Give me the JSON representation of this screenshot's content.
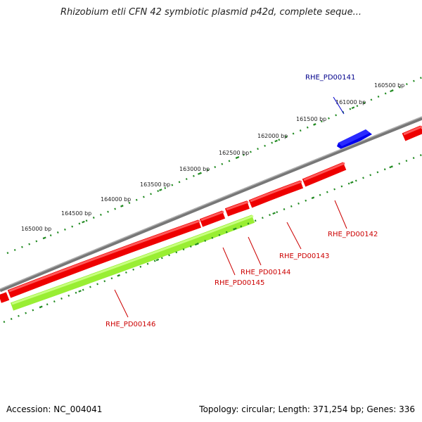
{
  "title": "Rhizobium etli CFN 42 symbiotic plasmid p42d, complete seque...",
  "footer": {
    "accession": "Accession: NC_004041",
    "topology": "Topology: circular; Length: 371,254 bp; Genes: 336"
  },
  "scale_labels": [
    "160500 bp",
    "161000 bp",
    "161500 bp",
    "162000 bp",
    "162500 bp",
    "163000 bp",
    "163500 bp",
    "164000 bp",
    "164500 bp",
    "165000 bp"
  ],
  "genes": [
    {
      "name": "RHE_PD00141",
      "strand": "forward",
      "color": "#0000ee",
      "label_color": "#00008b"
    },
    {
      "name": "RHE_PD00142",
      "strand": "reverse",
      "color": "#ee0000",
      "label_color": "#cc0000"
    },
    {
      "name": "RHE_PD00143",
      "strand": "reverse",
      "color": "#ee0000",
      "label_color": "#cc0000"
    },
    {
      "name": "RHE_PD00144",
      "strand": "reverse",
      "color": "#ee0000",
      "label_color": "#cc0000"
    },
    {
      "name": "RHE_PD00145",
      "strand": "reverse",
      "color": "#99ee33",
      "label_color": "#cc0000"
    },
    {
      "name": "RHE_PD00146",
      "strand": "reverse",
      "color": "#ee0000",
      "label_color": "#cc0000"
    }
  ],
  "colors": {
    "backbone": "#888888",
    "scale_dots": "#228b22",
    "forward_gene": "#0000ee",
    "reverse_gene": "#ee0000",
    "rna_gene": "#99ee33"
  }
}
